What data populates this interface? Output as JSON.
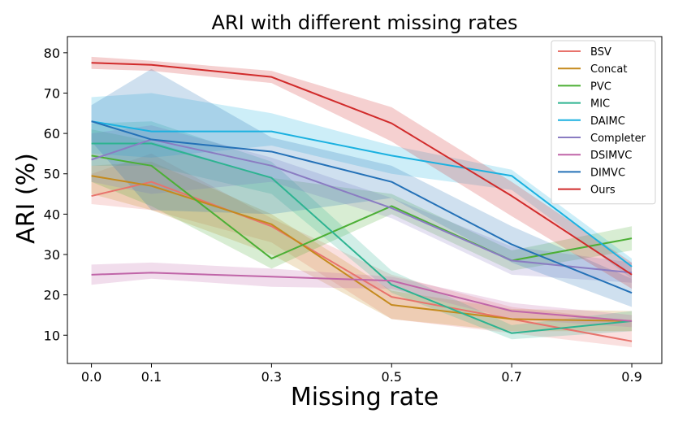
{
  "chart_data": {
    "type": "line",
    "title": "ARI with different missing rates",
    "xlabel": "Missing rate",
    "ylabel": "ARI (%)",
    "x": [
      0.0,
      0.1,
      0.3,
      0.5,
      0.7,
      0.9
    ],
    "x_tick_labels": [
      "0.0",
      "0.1",
      "0.3",
      "0.5",
      "0.7",
      "0.9"
    ],
    "xlim": [
      -0.04,
      0.95
    ],
    "ylim": [
      3,
      84
    ],
    "y_ticks": [
      10,
      20,
      30,
      40,
      50,
      60,
      70,
      80
    ],
    "grid": false,
    "legend_position": "top-right",
    "series": [
      {
        "name": "BSV",
        "color": "#e8736c",
        "values": [
          44.5,
          48,
          37,
          19.5,
          14,
          8.5
        ],
        "lower": [
          42.5,
          41,
          33,
          14,
          10.5,
          7
        ],
        "upper": [
          50,
          55,
          39,
          25,
          17,
          13.5
        ]
      },
      {
        "name": "Concat",
        "color": "#c58a1d",
        "values": [
          49.5,
          47,
          37.5,
          17.5,
          14,
          13.5
        ],
        "lower": [
          45,
          41,
          30,
          14,
          11,
          11
        ],
        "upper": [
          52,
          53,
          40,
          21,
          16.5,
          16
        ]
      },
      {
        "name": "PVC",
        "color": "#4caf35",
        "values": [
          54.5,
          52,
          29,
          42,
          28.5,
          34
        ],
        "lower": [
          48,
          42,
          26.5,
          40,
          26,
          31
        ],
        "upper": [
          61,
          58,
          49,
          45,
          31,
          37
        ]
      },
      {
        "name": "MIC",
        "color": "#2db391",
        "values": [
          57.5,
          57.5,
          49,
          22.5,
          10.5,
          13.5
        ],
        "lower": [
          52,
          52,
          45,
          20.5,
          9,
          11
        ],
        "upper": [
          62.5,
          63,
          53,
          26,
          12.5,
          16
        ]
      },
      {
        "name": "DAIMC",
        "color": "#1bb1e0",
        "values": [
          63,
          60.5,
          60.5,
          54.5,
          49.5,
          27
        ],
        "lower": [
          55,
          54,
          57,
          50,
          46,
          24
        ],
        "upper": [
          69,
          70,
          65,
          57,
          51,
          29
        ]
      },
      {
        "name": "Completer",
        "color": "#8a7cc2",
        "values": [
          53.5,
          58.5,
          52,
          41.5,
          28.5,
          25.5
        ],
        "lower": [
          48,
          45,
          48,
          39,
          25,
          23
        ],
        "upper": [
          60,
          62,
          54,
          44,
          32,
          28
        ]
      },
      {
        "name": "DSIMVC",
        "color": "#c065a8",
        "values": [
          25,
          25.5,
          24.5,
          23.5,
          16,
          13.5
        ],
        "lower": [
          22.5,
          24,
          22,
          21.5,
          14,
          12
        ],
        "upper": [
          27.5,
          28,
          26.5,
          24.5,
          18,
          15
        ]
      },
      {
        "name": "DIMVC",
        "color": "#2471b7",
        "values": [
          63,
          58.5,
          55.5,
          48,
          32.5,
          20.5
        ],
        "lower": [
          58,
          41,
          40,
          44,
          28,
          17
        ],
        "upper": [
          67,
          76,
          59,
          52,
          37,
          24
        ]
      },
      {
        "name": "Ours",
        "color": "#d12b2b",
        "values": [
          77.5,
          77,
          74,
          62.5,
          44.5,
          25
        ],
        "lower": [
          76,
          75.5,
          72.5,
          58,
          39.5,
          21.5
        ],
        "upper": [
          79,
          78,
          75.5,
          66.5,
          48,
          28
        ]
      }
    ]
  }
}
